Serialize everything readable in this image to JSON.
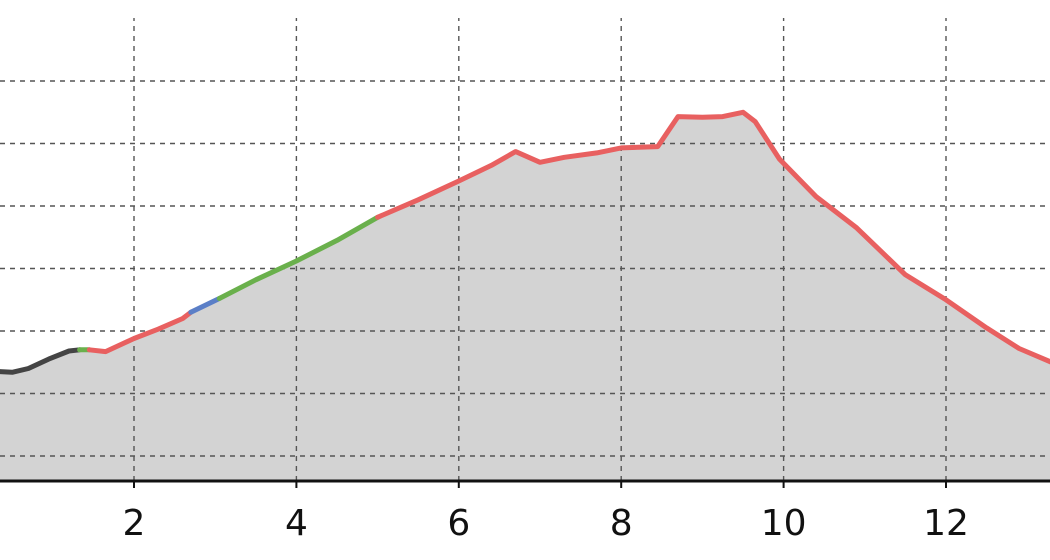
{
  "chart_data": {
    "type": "area",
    "title": "",
    "xlabel": "",
    "ylabel": "",
    "xlim": [
      0.35,
      13.3
    ],
    "ylim": [
      0,
      7.6
    ],
    "x_ticks": [
      2,
      4,
      6,
      8,
      10,
      12
    ],
    "x_tick_labels": [
      "2",
      "4",
      "6",
      "8",
      "10",
      "12"
    ],
    "y_gridlines": [
      0.4,
      1.4,
      2.4,
      3.4,
      4.4,
      5.4,
      6.4
    ],
    "grid": true,
    "legend": "none",
    "fill_color": "#d3d3d3",
    "segments": [
      {
        "color": "#444444",
        "points": [
          [
            0.35,
            1.75
          ],
          [
            0.5,
            1.74
          ],
          [
            0.7,
            1.8
          ],
          [
            0.95,
            1.95
          ],
          [
            1.2,
            2.08
          ],
          [
            1.33,
            2.1
          ]
        ]
      },
      {
        "color": "#6ab04c",
        "points": [
          [
            1.33,
            2.1
          ],
          [
            1.45,
            2.1
          ]
        ]
      },
      {
        "color": "#e86060",
        "points": [
          [
            1.45,
            2.1
          ],
          [
            1.65,
            2.07
          ],
          [
            2.0,
            2.28
          ],
          [
            2.3,
            2.43
          ],
          [
            2.6,
            2.6
          ],
          [
            2.7,
            2.7
          ]
        ]
      },
      {
        "color": "#5b7fc7",
        "points": [
          [
            2.7,
            2.7
          ],
          [
            3.05,
            2.92
          ]
        ]
      },
      {
        "color": "#6ab04c",
        "points": [
          [
            3.05,
            2.92
          ],
          [
            3.5,
            3.22
          ],
          [
            4.0,
            3.52
          ],
          [
            4.5,
            3.85
          ],
          [
            5.0,
            4.22
          ]
        ]
      },
      {
        "color": "#e86060",
        "points": [
          [
            5.0,
            4.22
          ],
          [
            5.5,
            4.5
          ],
          [
            6.0,
            4.8
          ],
          [
            6.4,
            5.05
          ],
          [
            6.7,
            5.27
          ],
          [
            7.0,
            5.1
          ],
          [
            7.3,
            5.18
          ],
          [
            7.7,
            5.25
          ],
          [
            8.0,
            5.33
          ],
          [
            8.45,
            5.35
          ],
          [
            8.7,
            5.83
          ],
          [
            9.0,
            5.82
          ],
          [
            9.25,
            5.83
          ],
          [
            9.5,
            5.9
          ],
          [
            9.65,
            5.75
          ],
          [
            9.95,
            5.15
          ],
          [
            10.4,
            4.55
          ],
          [
            10.9,
            4.05
          ],
          [
            11.5,
            3.3
          ],
          [
            12.0,
            2.9
          ],
          [
            12.5,
            2.45
          ],
          [
            12.9,
            2.12
          ],
          [
            13.3,
            1.9
          ]
        ]
      }
    ]
  }
}
